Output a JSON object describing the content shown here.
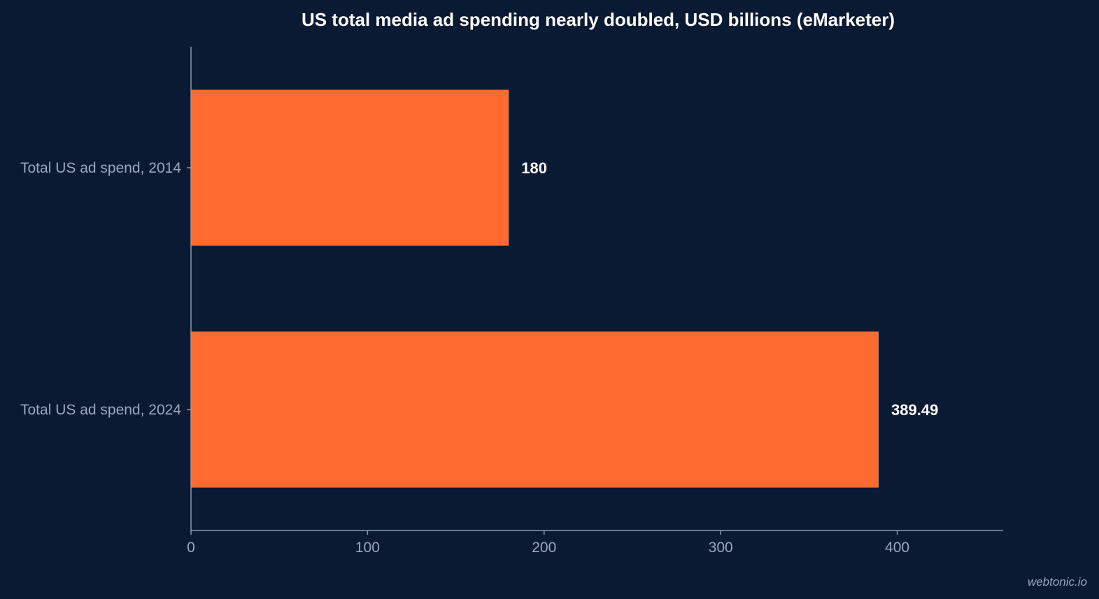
{
  "chart_data": {
    "type": "bar",
    "orientation": "horizontal",
    "title": "US total media ad spending nearly doubled, USD billions (eMarketer)",
    "xlabel": "",
    "ylabel": "",
    "categories": [
      "Total US ad spend, 2014",
      "Total US ad spend, 2024"
    ],
    "values": [
      180,
      389.49
    ],
    "value_labels": [
      "180",
      "389.49"
    ],
    "xlim": [
      0,
      460
    ],
    "x_ticks": [
      0,
      100,
      200,
      300,
      400
    ],
    "grid": false,
    "legend": "none",
    "bar_color": "#ff6b2f",
    "background_color": "#0b1a33"
  },
  "watermark": "webtonic.io"
}
